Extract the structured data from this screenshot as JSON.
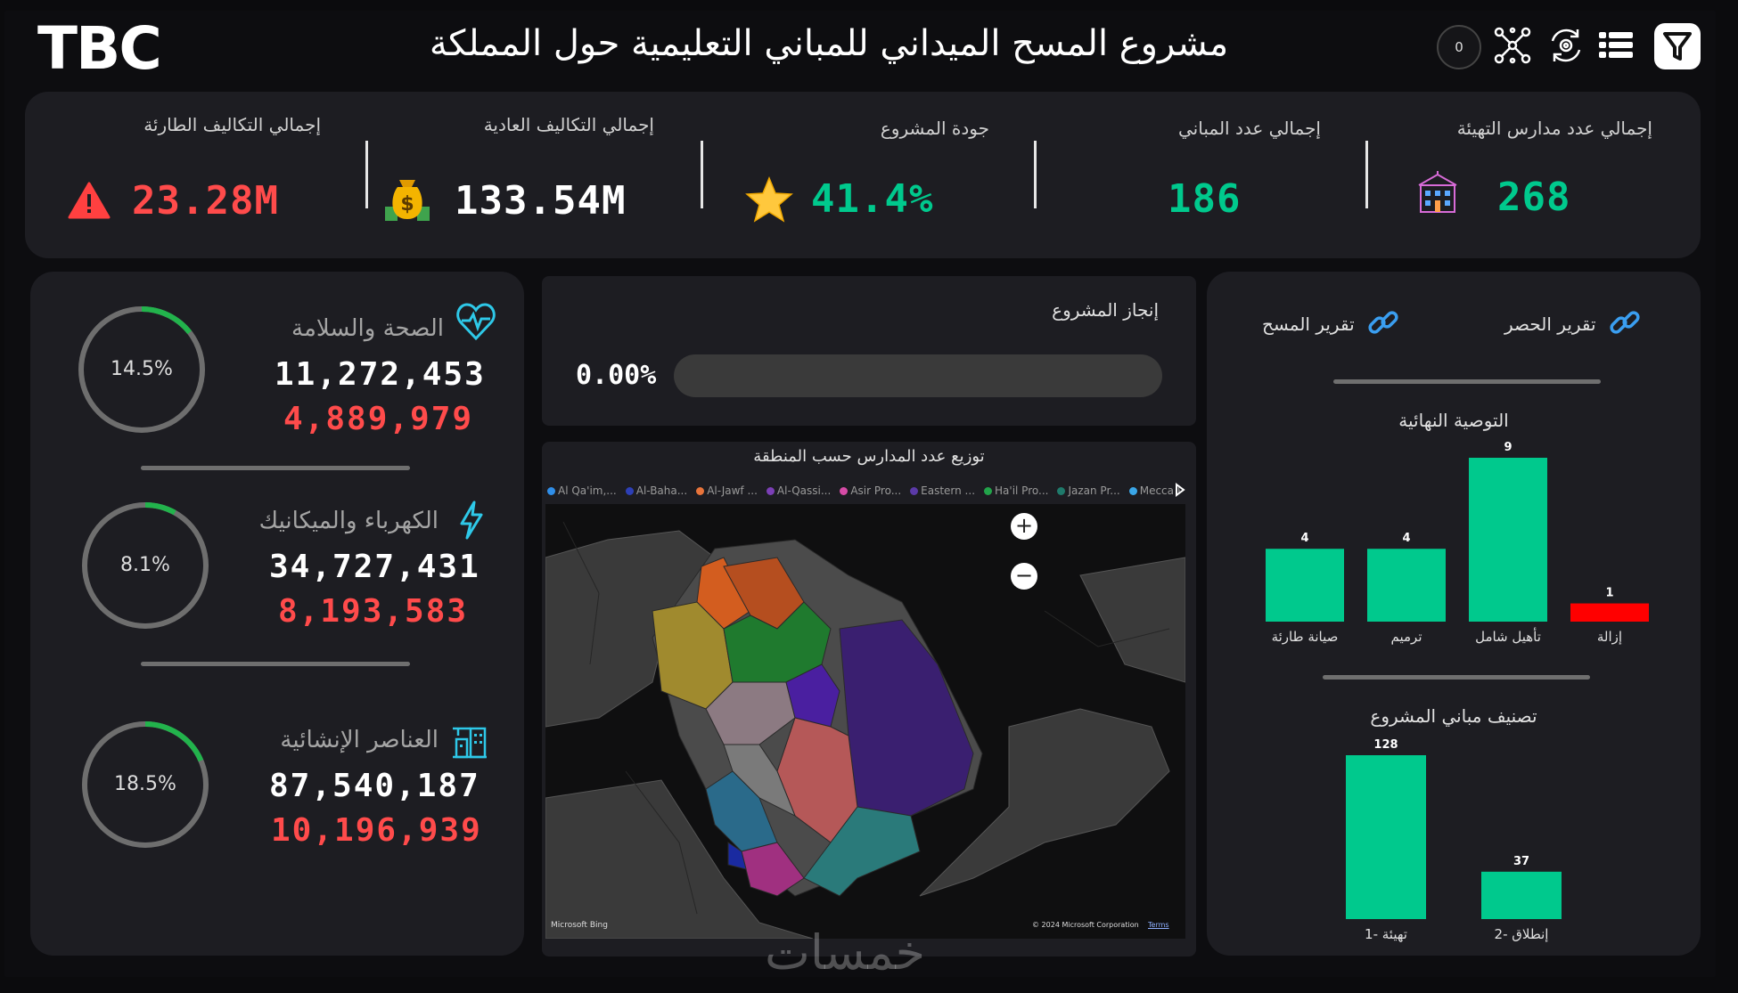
{
  "header": {
    "logo": "TBC",
    "title": "مشروع المسح الميداني للمباني التعليمية حول المملكة",
    "badge_count": "0",
    "icons": [
      "filter-icon",
      "list-icon",
      "sync-icon",
      "network-icon"
    ]
  },
  "kpis": {
    "schools": {
      "label": "إجمالي عدد مدارس التهيئة",
      "value": "268",
      "icon": "school-building-icon"
    },
    "buildings": {
      "label": "إجمالي عدد المباني",
      "value": "186"
    },
    "quality": {
      "label": "جودة المشروع",
      "value": "41.4%",
      "icon": "star-icon"
    },
    "normal_costs": {
      "label": "إجمالي التكاليف العادية",
      "value": "133.54M",
      "icon": "money-bag-icon"
    },
    "emergency_costs": {
      "label": "إجمالي التكاليف الطارئة",
      "value": "23.28M",
      "icon": "warning-icon"
    }
  },
  "categories": [
    {
      "title": "الصحة والسلامة",
      "main": "11,272,453",
      "sub": "4,889,979",
      "percent_label": "14.5%",
      "percent": 0.145,
      "icon": "heart-pulse-icon"
    },
    {
      "title": "الكهرباء والميكانيك",
      "main": "34,727,431",
      "sub": "8,193,583",
      "percent_label": "8.1%",
      "percent": 0.081,
      "icon": "lightning-icon"
    },
    {
      "title": "العناصر الإنشائية",
      "main": "87,540,187",
      "sub": "10,196,939",
      "percent_label": "18.5%",
      "percent": 0.185,
      "icon": "construction-icon"
    }
  ],
  "progress": {
    "title": "إنجاز المشروع",
    "value_label": "0.00%",
    "value": 0.0
  },
  "map": {
    "title": "توزيع عدد المدارس حسب المنطقة",
    "legend": [
      {
        "label": "Al Qa'im,...",
        "color": "#2f8ee8"
      },
      {
        "label": "Al-Baha...",
        "color": "#2d3fb6"
      },
      {
        "label": "Al-Jawf ...",
        "color": "#e8743b"
      },
      {
        "label": "Al-Qassi...",
        "color": "#7b3fb6"
      },
      {
        "label": "Asir Pro...",
        "color": "#d64ba6"
      },
      {
        "label": "Eastern ...",
        "color": "#5b3aa8"
      },
      {
        "label": "Ha'il Pro...",
        "color": "#22a34a"
      },
      {
        "label": "Jazan Pr...",
        "color": "#1f7a6b"
      },
      {
        "label": "Mecca P...",
        "color": "#3aa6e8"
      }
    ],
    "attribution_left": "Microsoft Bing",
    "attribution_right": "© 2024 Microsoft Corporation",
    "terms": "Terms"
  },
  "reports": {
    "survey": "تقرير المسح",
    "inventory": "تقرير الحصر"
  },
  "chart_data": [
    {
      "type": "bar",
      "title": "التوصية النهائية",
      "categories": [
        "إزالة",
        "تأهيل شامل",
        "ترميم",
        "صيانة طارئة"
      ],
      "values": [
        1,
        9,
        4,
        4
      ],
      "colors": [
        "#ff0000",
        "#00c98d",
        "#00c98d",
        "#00c98d"
      ]
    },
    {
      "type": "bar",
      "title": "تصنيف مباني المشروع",
      "categories": [
        "إنطلاق -2",
        "تهيئة -1"
      ],
      "values": [
        37,
        128
      ],
      "colors": [
        "#00c98d",
        "#00c98d"
      ]
    }
  ],
  "watermark": "خمسات",
  "colors": {
    "accent": "#00c98d",
    "danger": "#ff4b4b",
    "ring": "#6e6e6e",
    "ring_fill": "#22b34c",
    "panel": "#1d1d22"
  }
}
